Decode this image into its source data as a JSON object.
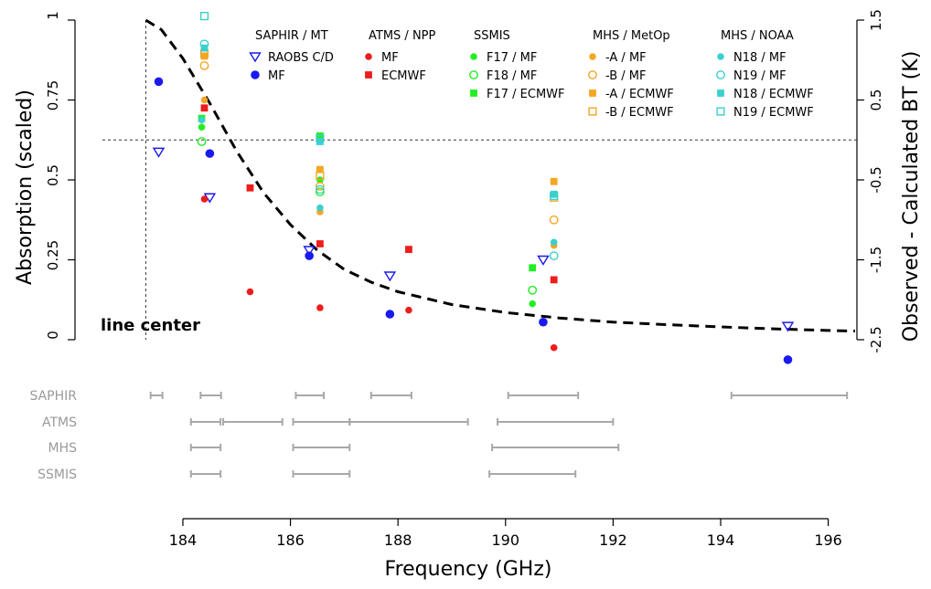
{
  "chart_data": {
    "type": "scatter",
    "xlabel": "Frequency (GHz)",
    "ylabel_left": "Absorption (scaled)",
    "ylabel_right": "Observed - Calculated BT (K)",
    "xlim": [
      182.3,
      196.5
    ],
    "ylim_left": [
      0,
      1
    ],
    "ylim_right": [
      -2.5,
      1.5
    ],
    "x_ticks": [
      184,
      186,
      188,
      190,
      192,
      194,
      196
    ],
    "y_ticks_left": [
      "0",
      "0.25",
      "0.5",
      "0.75",
      "1"
    ],
    "y_ticks_right": [
      "-2.5",
      "-1.5",
      "-0.5",
      "0.5",
      "1.5"
    ],
    "zero_reference_right": 0,
    "line_center": {
      "label": "line center",
      "x": 183.31
    },
    "absorption_curve": {
      "x": [
        183.31,
        183.6,
        184.0,
        184.5,
        185.0,
        185.5,
        186.0,
        186.5,
        187.0,
        187.5,
        188.0,
        189.0,
        190.0,
        191.0,
        192.0,
        193.0,
        194.0,
        195.0,
        196.0,
        196.5
      ],
      "y": [
        1.0,
        0.97,
        0.88,
        0.74,
        0.59,
        0.46,
        0.36,
        0.28,
        0.22,
        0.18,
        0.15,
        0.11,
        0.085,
        0.068,
        0.055,
        0.047,
        0.04,
        0.034,
        0.029,
        0.027
      ]
    },
    "legend_groups": [
      {
        "title": "SAPHIR / MT",
        "entries": [
          {
            "label": "RAOBS C/D",
            "color": "#1a1aee",
            "marker": "triangle-open"
          },
          {
            "label": "MF",
            "color": "#1a1aee",
            "marker": "circle-filled"
          }
        ]
      },
      {
        "title": "ATMS / NPP",
        "entries": [
          {
            "label": "MF",
            "color": "#ee1c1c",
            "marker": "circle-filled-small"
          },
          {
            "label": "ECMWF",
            "color": "#ee1c1c",
            "marker": "square-filled"
          }
        ]
      },
      {
        "title": "SSMIS",
        "entries": [
          {
            "label": "F17 / MF",
            "color": "#22ee22",
            "marker": "circle-filled-small"
          },
          {
            "label": "F18 / MF",
            "color": "#22ee22",
            "marker": "circle-open"
          },
          {
            "label": "F17 / ECMWF",
            "color": "#22ee22",
            "marker": "square-filled"
          }
        ]
      },
      {
        "title": "MHS / MetOp",
        "entries": [
          {
            "label": "-A / MF",
            "color": "#f5a623",
            "marker": "circle-filled-small"
          },
          {
            "label": "-B / MF",
            "color": "#f5a623",
            "marker": "circle-open"
          },
          {
            "label": "-A / ECMWF",
            "color": "#f5a623",
            "marker": "square-filled"
          },
          {
            "label": "-B / ECMWF",
            "color": "#f5a623",
            "marker": "square-open"
          }
        ]
      },
      {
        "title": "MHS / NOAA",
        "entries": [
          {
            "label": "N18 / MF",
            "color": "#3ccfcf",
            "marker": "circle-filled-small"
          },
          {
            "label": "N19 / MF",
            "color": "#3ccfcf",
            "marker": "circle-open"
          },
          {
            "label": "N18 / ECMWF",
            "color": "#3ccfcf",
            "marker": "square-filled"
          },
          {
            "label": "N19 / ECMWF",
            "color": "#3ccfcf",
            "marker": "square-open"
          }
        ]
      }
    ],
    "series": [
      {
        "instrument": "SAPHIR",
        "source": "RAOBS C/D",
        "color": "#1a1aee",
        "marker": "triangle-open",
        "x": [
          183.55,
          184.5,
          186.35,
          187.85,
          190.7,
          195.25
        ],
        "y": [
          -0.15,
          -0.72,
          -1.38,
          -1.7,
          -1.5,
          -2.33
        ]
      },
      {
        "instrument": "SAPHIR",
        "source": "MF",
        "color": "#1a1aee",
        "marker": "circle-filled",
        "x": [
          183.55,
          184.5,
          186.35,
          187.85,
          190.7,
          195.25
        ],
        "y": [
          0.73,
          -0.17,
          -1.45,
          -2.18,
          -2.28,
          -2.75
        ]
      },
      {
        "instrument": "ATMS",
        "source": "MF",
        "color": "#ee1c1c",
        "marker": "circle-filled-small",
        "x": [
          184.4,
          185.25,
          186.55,
          188.2,
          190.9
        ],
        "y": [
          -0.74,
          -1.9,
          -2.1,
          -2.13,
          -2.6
        ]
      },
      {
        "instrument": "ATMS",
        "source": "ECMWF",
        "color": "#ee1c1c",
        "marker": "square-filled",
        "x": [
          184.4,
          185.25,
          186.55,
          188.2,
          190.9
        ],
        "y": [
          0.4,
          -0.6,
          -1.3,
          -1.37,
          -1.75
        ]
      },
      {
        "instrument": "SSMIS",
        "source": "F17 / MF",
        "color": "#22ee22",
        "marker": "circle-filled-small",
        "x": [
          184.35,
          186.55,
          190.5
        ],
        "y": [
          0.16,
          -0.5,
          -2.05
        ]
      },
      {
        "instrument": "SSMIS",
        "source": "F18 / MF",
        "color": "#22ee22",
        "marker": "circle-open",
        "x": [
          184.35,
          186.55,
          190.5
        ],
        "y": [
          -0.02,
          -0.65,
          -1.88
        ]
      },
      {
        "instrument": "SSMIS",
        "source": "F17 / ECMWF",
        "color": "#22ee22",
        "marker": "square-filled",
        "x": [
          184.35,
          186.55,
          190.5
        ],
        "y": [
          0.27,
          0.05,
          -1.6
        ]
      },
      {
        "instrument": "MHS",
        "source": "MetOp-A / MF",
        "color": "#f5a623",
        "marker": "circle-filled-small",
        "x": [
          184.4,
          186.55,
          190.9
        ],
        "y": [
          0.5,
          -0.9,
          -1.32
        ]
      },
      {
        "instrument": "MHS",
        "source": "MetOp-B / MF",
        "color": "#f5a623",
        "marker": "circle-open",
        "x": [
          184.4,
          186.55,
          190.9
        ],
        "y": [
          0.93,
          -0.58,
          -1.0
        ]
      },
      {
        "instrument": "MHS",
        "source": "MetOp-A / ECMWF",
        "color": "#f5a623",
        "marker": "square-filled",
        "x": [
          184.4,
          186.55,
          190.9
        ],
        "y": [
          1.05,
          -0.37,
          -0.52
        ]
      },
      {
        "instrument": "MHS",
        "source": "MetOp-B / ECMWF",
        "color": "#f5a623",
        "marker": "square-open",
        "x": [
          184.4,
          186.55,
          190.9
        ],
        "y": [
          1.08,
          -0.45,
          -0.72
        ]
      },
      {
        "instrument": "MHS",
        "source": "NOAA-18 / MF",
        "color": "#3ccfcf",
        "marker": "circle-filled-small",
        "x": [
          184.35,
          186.55,
          190.9
        ],
        "y": [
          0.25,
          -0.85,
          -1.28
        ]
      },
      {
        "instrument": "MHS",
        "source": "NOAA-19 / MF",
        "color": "#3ccfcf",
        "marker": "circle-open",
        "x": [
          184.4,
          186.55,
          190.9
        ],
        "y": [
          1.2,
          -0.62,
          -1.45
        ]
      },
      {
        "instrument": "MHS",
        "source": "NOAA-18 / ECMWF",
        "color": "#3ccfcf",
        "marker": "square-filled",
        "x": [
          184.4,
          186.55,
          190.9
        ],
        "y": [
          1.15,
          -0.02,
          -0.68
        ]
      },
      {
        "instrument": "MHS",
        "source": "NOAA-19 / ECMWF",
        "color": "#3ccfcf",
        "marker": "square-open",
        "x": [
          184.4,
          186.55,
          190.9
        ],
        "y": [
          1.55,
          0.02,
          -0.7
        ]
      }
    ],
    "bandwidths": [
      {
        "label": "SAPHIR",
        "ranges": [
          [
            183.4,
            183.62
          ],
          [
            184.33,
            184.71
          ],
          [
            186.1,
            186.62
          ],
          [
            187.5,
            188.25
          ],
          [
            190.05,
            191.35
          ],
          [
            194.2,
            196.35
          ]
        ]
      },
      {
        "label": "ATMS",
        "ranges": [
          [
            184.15,
            184.7
          ],
          [
            184.75,
            185.85
          ],
          [
            186.05,
            187.1
          ],
          [
            187.1,
            189.3
          ],
          [
            189.85,
            192.0
          ]
        ]
      },
      {
        "label": "MHS",
        "ranges": [
          [
            184.15,
            184.7
          ],
          [
            186.05,
            187.1
          ],
          [
            189.75,
            192.1
          ]
        ]
      },
      {
        "label": "SSMIS",
        "ranges": [
          [
            184.15,
            184.7
          ],
          [
            186.05,
            187.1
          ],
          [
            189.7,
            191.3
          ]
        ]
      }
    ]
  }
}
